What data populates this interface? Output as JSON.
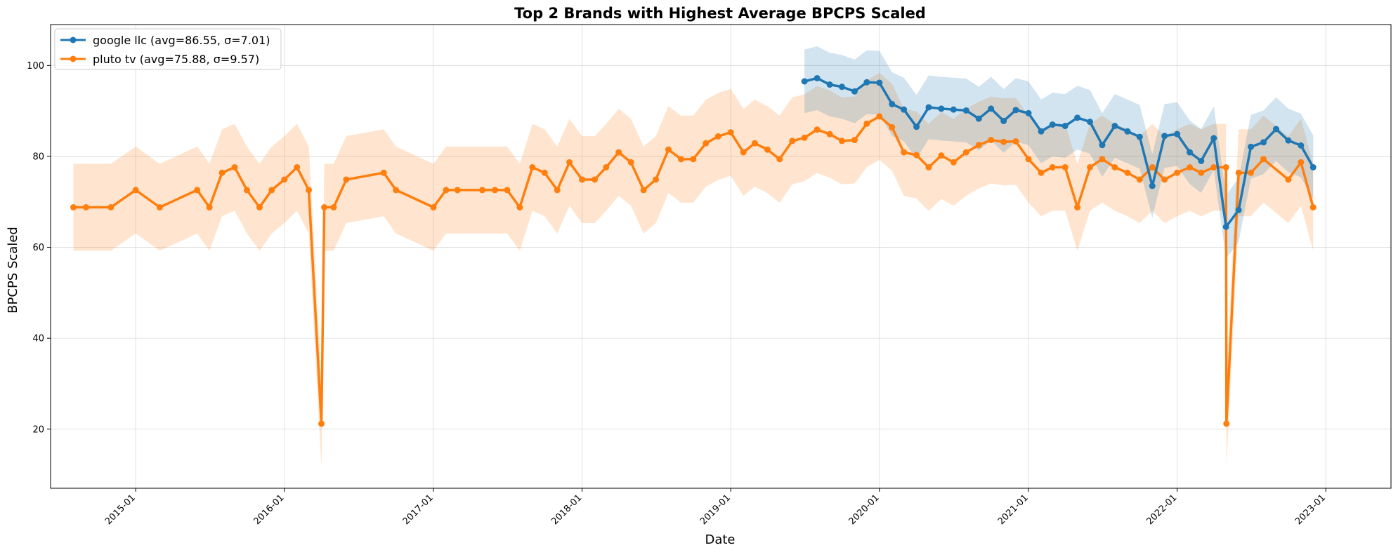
{
  "chart_data": {
    "type": "line",
    "title": "Top 2 Brands with Highest Average BPCPS Scaled",
    "xlabel": "Date",
    "ylabel": "BPCPS Scaled",
    "x_ticks": [
      "2015-01",
      "2016-01",
      "2017-01",
      "2018-01",
      "2019-01",
      "2020-01",
      "2021-01",
      "2022-01",
      "2023-01"
    ],
    "y_ticks": [
      20,
      40,
      60,
      80,
      100
    ],
    "xlim": [
      "2014-06-06",
      "2023-06-10"
    ],
    "ylim": [
      7,
      109
    ],
    "grid": true,
    "legend_position": "top-left",
    "series": [
      {
        "name": "google llc (avg=86.55, σ=7.01)",
        "color": "#1f77b4",
        "band_color": "#1f77b4",
        "band_halfwidth": 7.01,
        "points": [
          [
            "2019-07-01",
            96.5
          ],
          [
            "2019-08-01",
            97.2
          ],
          [
            "2019-09-01",
            95.8
          ],
          [
            "2019-10-01",
            95.3
          ],
          [
            "2019-11-01",
            94.3
          ],
          [
            "2019-12-01",
            96.3
          ],
          [
            "2020-01-01",
            96.2
          ],
          [
            "2020-02-01",
            91.5
          ],
          [
            "2020-03-01",
            90.3
          ],
          [
            "2020-04-01",
            86.5
          ],
          [
            "2020-05-01",
            90.8
          ],
          [
            "2020-06-01",
            90.5
          ],
          [
            "2020-07-01",
            90.3
          ],
          [
            "2020-08-01",
            90.1
          ],
          [
            "2020-09-01",
            88.3
          ],
          [
            "2020-10-01",
            90.5
          ],
          [
            "2020-11-01",
            87.8
          ],
          [
            "2020-12-01",
            90.2
          ],
          [
            "2021-01-01",
            89.5
          ],
          [
            "2021-02-01",
            85.5
          ],
          [
            "2021-03-01",
            87.0
          ],
          [
            "2021-04-01",
            86.7
          ],
          [
            "2021-05-01",
            88.5
          ],
          [
            "2021-06-01",
            87.6
          ],
          [
            "2021-07-01",
            82.5
          ],
          [
            "2021-08-01",
            86.7
          ],
          [
            "2021-09-01",
            85.5
          ],
          [
            "2021-10-01",
            84.3
          ],
          [
            "2021-11-01",
            73.5
          ],
          [
            "2021-12-01",
            84.5
          ],
          [
            "2022-01-01",
            84.9
          ],
          [
            "2022-02-01",
            80.9
          ],
          [
            "2022-03-01",
            79.0
          ],
          [
            "2022-04-01",
            84.0
          ],
          [
            "2022-05-01",
            64.5
          ],
          [
            "2022-06-01",
            68.2
          ],
          [
            "2022-07-01",
            82.1
          ],
          [
            "2022-08-01",
            83.1
          ],
          [
            "2022-09-01",
            86.0
          ],
          [
            "2022-10-01",
            83.5
          ],
          [
            "2022-11-01",
            82.4
          ],
          [
            "2022-12-01",
            77.6
          ]
        ]
      },
      {
        "name": "pluto tv (avg=75.88, σ=9.57)",
        "color": "#ff7f0e",
        "band_color": "#ff7f0e",
        "band_halfwidth": 9.57,
        "points": [
          [
            "2014-08-01",
            68.8
          ],
          [
            "2014-09-01",
            68.8
          ],
          [
            "2014-11-01",
            68.8
          ],
          [
            "2015-01-01",
            72.6
          ],
          [
            "2015-03-01",
            68.8
          ],
          [
            "2015-06-01",
            72.6
          ],
          [
            "2015-07-01",
            68.8
          ],
          [
            "2015-08-01",
            76.4
          ],
          [
            "2015-09-01",
            77.6
          ],
          [
            "2015-10-01",
            72.6
          ],
          [
            "2015-11-01",
            68.8
          ],
          [
            "2015-12-01",
            72.6
          ],
          [
            "2016-01-01",
            74.9
          ],
          [
            "2016-02-01",
            77.6
          ],
          [
            "2016-03-01",
            72.6
          ],
          [
            "2016-04-01",
            21.2
          ],
          [
            "2016-04-08",
            68.8
          ],
          [
            "2016-05-01",
            68.8
          ],
          [
            "2016-06-01",
            74.9
          ],
          [
            "2016-09-01",
            76.4
          ],
          [
            "2016-10-01",
            72.6
          ],
          [
            "2017-01-01",
            68.8
          ],
          [
            "2017-02-01",
            72.6
          ],
          [
            "2017-03-01",
            72.6
          ],
          [
            "2017-05-01",
            72.6
          ],
          [
            "2017-06-01",
            72.6
          ],
          [
            "2017-07-01",
            72.6
          ],
          [
            "2017-08-01",
            68.8
          ],
          [
            "2017-09-01",
            77.6
          ],
          [
            "2017-10-01",
            76.4
          ],
          [
            "2017-11-01",
            72.6
          ],
          [
            "2017-12-01",
            78.7
          ],
          [
            "2018-01-01",
            74.9
          ],
          [
            "2018-02-01",
            74.9
          ],
          [
            "2018-03-01",
            77.6
          ],
          [
            "2018-04-01",
            80.9
          ],
          [
            "2018-05-01",
            78.7
          ],
          [
            "2018-06-01",
            72.6
          ],
          [
            "2018-07-01",
            74.9
          ],
          [
            "2018-08-01",
            81.5
          ],
          [
            "2018-09-01",
            79.4
          ],
          [
            "2018-10-01",
            79.4
          ],
          [
            "2018-11-01",
            82.9
          ],
          [
            "2018-12-01",
            84.4
          ],
          [
            "2019-01-01",
            85.3
          ],
          [
            "2019-02-01",
            80.9
          ],
          [
            "2019-03-01",
            82.9
          ],
          [
            "2019-04-01",
            81.5
          ],
          [
            "2019-05-01",
            79.4
          ],
          [
            "2019-06-01",
            83.4
          ],
          [
            "2019-07-01",
            84.1
          ],
          [
            "2019-08-01",
            85.9
          ],
          [
            "2019-09-01",
            84.9
          ],
          [
            "2019-10-01",
            83.4
          ],
          [
            "2019-11-01",
            83.6
          ],
          [
            "2019-12-01",
            87.2
          ],
          [
            "2020-01-01",
            88.8
          ],
          [
            "2020-02-01",
            86.4
          ],
          [
            "2020-03-01",
            80.9
          ],
          [
            "2020-04-01",
            80.3
          ],
          [
            "2020-05-01",
            77.6
          ],
          [
            "2020-06-01",
            80.2
          ],
          [
            "2020-07-01",
            78.7
          ],
          [
            "2020-08-01",
            80.9
          ],
          [
            "2020-09-01",
            82.5
          ],
          [
            "2020-10-01",
            83.6
          ],
          [
            "2020-11-01",
            83.2
          ],
          [
            "2020-12-01",
            83.3
          ],
          [
            "2021-01-01",
            79.4
          ],
          [
            "2021-02-01",
            76.4
          ],
          [
            "2021-03-01",
            77.6
          ],
          [
            "2021-04-01",
            77.6
          ],
          [
            "2021-05-01",
            68.8
          ],
          [
            "2021-06-01",
            77.6
          ],
          [
            "2021-07-01",
            79.4
          ],
          [
            "2021-08-01",
            77.6
          ],
          [
            "2021-09-01",
            76.4
          ],
          [
            "2021-10-01",
            74.9
          ],
          [
            "2021-11-01",
            77.6
          ],
          [
            "2021-12-01",
            74.9
          ],
          [
            "2022-01-01",
            76.4
          ],
          [
            "2022-02-01",
            77.6
          ],
          [
            "2022-03-01",
            76.4
          ],
          [
            "2022-04-01",
            77.6
          ],
          [
            "2022-05-01",
            77.6
          ],
          [
            "2022-05-02",
            21.2
          ],
          [
            "2022-06-01",
            76.4
          ],
          [
            "2022-07-01",
            76.4
          ],
          [
            "2022-08-01",
            79.4
          ],
          [
            "2022-10-01",
            74.9
          ],
          [
            "2022-11-01",
            78.7
          ],
          [
            "2022-12-01",
            68.8
          ]
        ]
      }
    ]
  }
}
